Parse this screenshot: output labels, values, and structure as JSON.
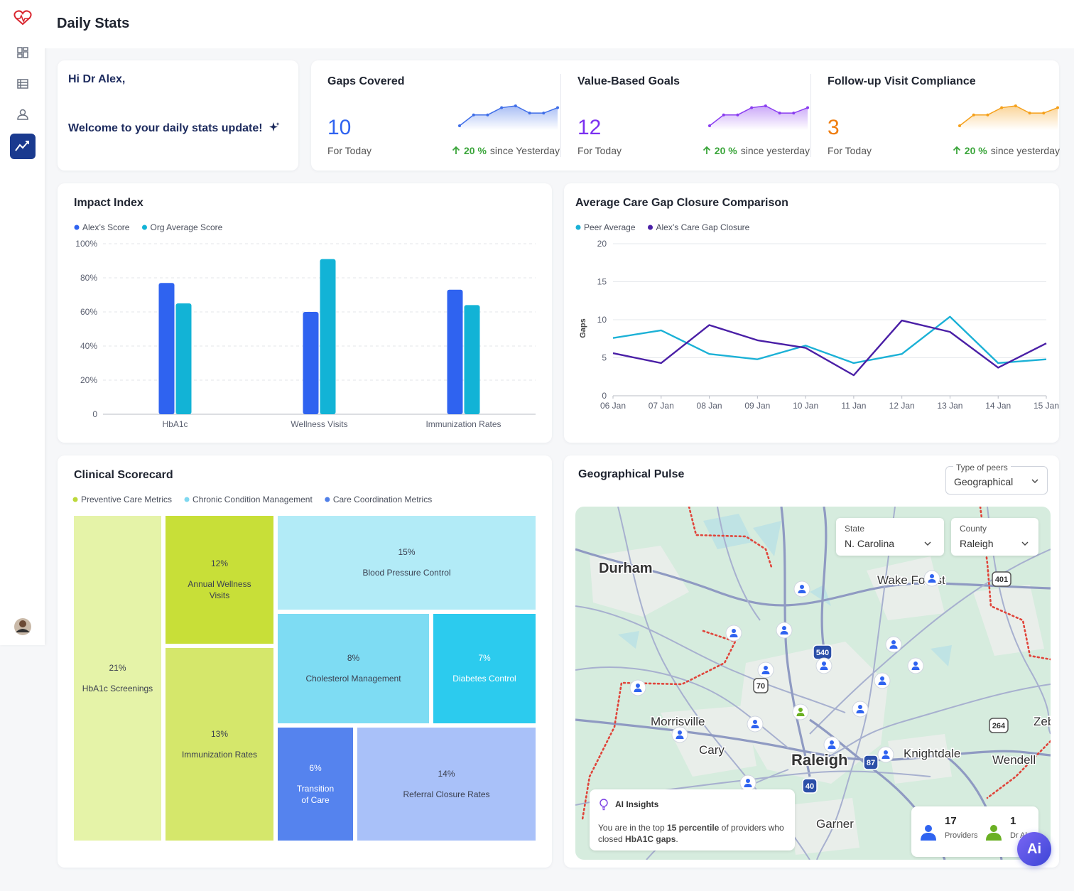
{
  "header": {
    "title": "Daily Stats"
  },
  "greeting": {
    "hello": "Hi Dr Alex,",
    "message": "Welcome to your daily stats update!"
  },
  "kpis": [
    {
      "title": "Gaps Covered",
      "value": 10,
      "caption": "For Today",
      "change": "20 %",
      "change_text": "since Yesterday",
      "color": "#2f63f0",
      "line_color": "#3f6ee8",
      "trend": [
        2,
        8,
        8,
        12,
        13,
        9,
        9,
        12
      ]
    },
    {
      "title": "Value-Based Goals",
      "value": 12,
      "caption": "For Today",
      "change": "20 %",
      "change_text": "since yesterday",
      "color": "#7b2ff0",
      "line_color": "#8a3df0",
      "trend": [
        2,
        8,
        8,
        12,
        13,
        9,
        9,
        12
      ]
    },
    {
      "title": "Follow-up Visit Compliance",
      "value": 3,
      "caption": "For Today",
      "change": "20 %",
      "change_text": "since yesterday",
      "color": "#ef7d0e",
      "line_color": "#f5a01a",
      "trend": [
        2,
        8,
        8,
        12,
        13,
        9,
        9,
        12
      ]
    }
  ],
  "chart_data": [
    {
      "type": "bar",
      "title": "Impact Index",
      "categories": [
        "HbA1c",
        "Wellness Visits",
        "Immunization Rates"
      ],
      "series": [
        {
          "name": "Alex’s Score",
          "color": "#2f63f0",
          "values": [
            77,
            60,
            73
          ]
        },
        {
          "name": "Org Average Score",
          "color": "#12b3d6",
          "values": [
            65,
            91,
            64
          ]
        }
      ],
      "ylim": [
        0,
        100
      ],
      "yticks": [
        0,
        {
          "value": 20,
          "label": "20%"
        },
        {
          "value": 40,
          "label": "40%"
        },
        {
          "value": 60,
          "label": "60%"
        },
        {
          "value": 80,
          "label": "80%"
        },
        {
          "value": 100,
          "label": "100%"
        }
      ],
      "grid": true
    },
    {
      "type": "line",
      "title": "Average Care Gap Closure Comparison",
      "y_label": "Gaps",
      "categories": [
        "06 Jan",
        "07 Jan",
        "08 Jan",
        "09 Jan",
        "10 Jan",
        "11 Jan",
        "12 Jan",
        "13 Jan",
        "14 Jan",
        "15 Jan"
      ],
      "series": [
        {
          "name": "Peer Average",
          "color": "#1bb1d6",
          "values": [
            7.6,
            8.6,
            5.5,
            4.8,
            6.6,
            4.3,
            5.5,
            10.4,
            4.3,
            4.8
          ]
        },
        {
          "name": "Alex’s Care Gap Closure",
          "color": "#4a1fa6",
          "values": [
            5.6,
            4.3,
            9.3,
            7.3,
            6.3,
            2.7,
            9.9,
            8.4,
            3.7,
            6.9
          ]
        }
      ],
      "ylim": [
        0,
        20
      ],
      "yticks": [
        0,
        5,
        10,
        15,
        20
      ],
      "grid": true
    },
    {
      "type": "treemap",
      "title": "Clinical Scorecard",
      "groups": [
        {
          "name": "Preventive Care Metrics",
          "color": "#bcd83a",
          "items": [
            {
              "label": "HbA1c Screenings",
              "value": 21,
              "value_label": "21%",
              "color": "#e5f3a8"
            },
            {
              "label": "Annual Wellness Visits",
              "value": 12,
              "value_label": "12%",
              "color": "#c8df38"
            },
            {
              "label": "Immunization Rates",
              "value": 13,
              "value_label": "13%",
              "color": "#d5e76b"
            }
          ]
        },
        {
          "name": "Chronic Condition Management",
          "color": "#7fd8f0",
          "items": [
            {
              "label": "Blood Pressure Control",
              "value": 15,
              "value_label": "15%",
              "color": "#b2ebf7"
            },
            {
              "label": "Cholesterol Management",
              "value": 8,
              "value_label": "8%",
              "color": "#7edcf3"
            },
            {
              "label": "Diabetes Control",
              "value": 7,
              "value_label": "7%",
              "color": "#2ccbee"
            }
          ]
        },
        {
          "name": "Care Coordination Metrics",
          "color": "#4f7fe8",
          "items": [
            {
              "label": "Transition of Care",
              "value": 6,
              "value_label": "6%",
              "color": "#5583ee"
            },
            {
              "label": "Referral Closure Rates",
              "value": 14,
              "value_label": "14%",
              "color": "#a9c1f9"
            }
          ]
        }
      ]
    }
  ],
  "geo": {
    "title": "Geographical Pulse",
    "peer_filter": {
      "label": "Type of peers",
      "value": "Geographical"
    },
    "state_filter": {
      "label": "State",
      "value": "N. Carolina"
    },
    "county_filter": {
      "label": "County",
      "value": "Raleigh"
    },
    "places": [
      "Durham",
      "Wake Forest",
      "Morrisville",
      "Cary",
      "Raleigh",
      "Knightdale",
      "Wendell",
      "Garner",
      "Zeb"
    ],
    "shields": [
      {
        "label": "540",
        "style": "interstate"
      },
      {
        "label": "70",
        "style": "us"
      },
      {
        "label": "40",
        "style": "interstate"
      },
      {
        "label": "87",
        "style": "interstate"
      },
      {
        "label": "264",
        "style": "us"
      },
      {
        "label": "401",
        "style": "us"
      }
    ],
    "insights": {
      "title": "AI Insights",
      "parts": [
        {
          "text": "You are in the top ",
          "bold": false
        },
        {
          "text": "15 percentile",
          "bold": true
        },
        {
          "text": " of providers who closed ",
          "bold": false
        },
        {
          "text": "HbA1C gaps",
          "bold": true
        },
        {
          "text": ".",
          "bold": false
        }
      ]
    },
    "counts": [
      {
        "value": 17,
        "label": "Providers",
        "color": "#2f63f0"
      },
      {
        "value": 1,
        "label": "Dr Al",
        "color": "#6ab023"
      }
    ],
    "ai_button": "Ai"
  }
}
